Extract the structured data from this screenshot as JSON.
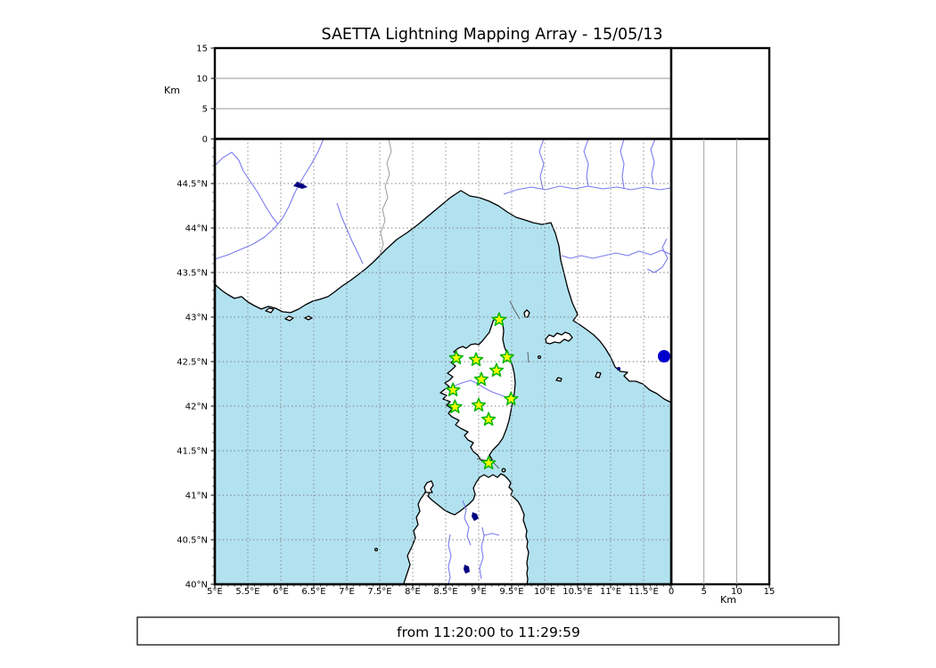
{
  "title": "SAETTA Lightning Mapping Array - 15/05/13",
  "footer": "from 11:20:00 to 11:29:59",
  "colors": {
    "sea": "#b2e2f0",
    "land": "#ffffff",
    "coast": "#000000",
    "river": "#7b7bf0",
    "lake": "#000080",
    "grid": "#7f7f7f",
    "panel_grid": "#999999",
    "star_fill": "#ffff00",
    "star_edge": "#00b400",
    "event_dot": "#0000cc"
  },
  "altitude_axis": {
    "label": "Km",
    "ticks": [
      0,
      5,
      10,
      15
    ],
    "max": 15
  },
  "map": {
    "lon_ticks": [
      {
        "v": 5,
        "label": "5°E"
      },
      {
        "v": 5.5,
        "label": "5.5°E"
      },
      {
        "v": 6,
        "label": "6°E"
      },
      {
        "v": 6.5,
        "label": "6.5°E"
      },
      {
        "v": 7,
        "label": "7°E"
      },
      {
        "v": 7.5,
        "label": "7.5°E"
      },
      {
        "v": 8,
        "label": "8°E"
      },
      {
        "v": 8.5,
        "label": "8.5°E"
      },
      {
        "v": 9,
        "label": "9°E"
      },
      {
        "v": 9.5,
        "label": "9.5°E"
      },
      {
        "v": 10,
        "label": "10°E"
      },
      {
        "v": 10.5,
        "label": "10.5°E"
      },
      {
        "v": 11,
        "label": "11°E"
      },
      {
        "v": 11.5,
        "label": "11.5°E"
      }
    ],
    "lat_ticks": [
      {
        "v": 40,
        "label": "40°N"
      },
      {
        "v": 40.5,
        "label": "40.5°N"
      },
      {
        "v": 41,
        "label": "41°N"
      },
      {
        "v": 41.5,
        "label": "41.5°N"
      },
      {
        "v": 42,
        "label": "42°N"
      },
      {
        "v": 42.5,
        "label": "42.5°N"
      },
      {
        "v": 43,
        "label": "43°N"
      },
      {
        "v": 43.5,
        "label": "43.5°N"
      },
      {
        "v": 44,
        "label": "44°N"
      },
      {
        "v": 44.5,
        "label": "44.5°N"
      }
    ],
    "stations": [
      {
        "lon": 9.31,
        "lat": 42.97
      },
      {
        "lon": 8.66,
        "lat": 42.54
      },
      {
        "lon": 8.96,
        "lat": 42.52
      },
      {
        "lon": 9.43,
        "lat": 42.55
      },
      {
        "lon": 9.27,
        "lat": 42.4
      },
      {
        "lon": 9.04,
        "lat": 42.3
      },
      {
        "lon": 8.61,
        "lat": 42.18
      },
      {
        "lon": 9.49,
        "lat": 42.08
      },
      {
        "lon": 8.64,
        "lat": 41.99
      },
      {
        "lon": 9.0,
        "lat": 42.01
      },
      {
        "lon": 9.15,
        "lat": 41.85
      },
      {
        "lon": 9.15,
        "lat": 41.36
      }
    ],
    "event_point": {
      "lon": 11.81,
      "lat": 42.56
    }
  }
}
